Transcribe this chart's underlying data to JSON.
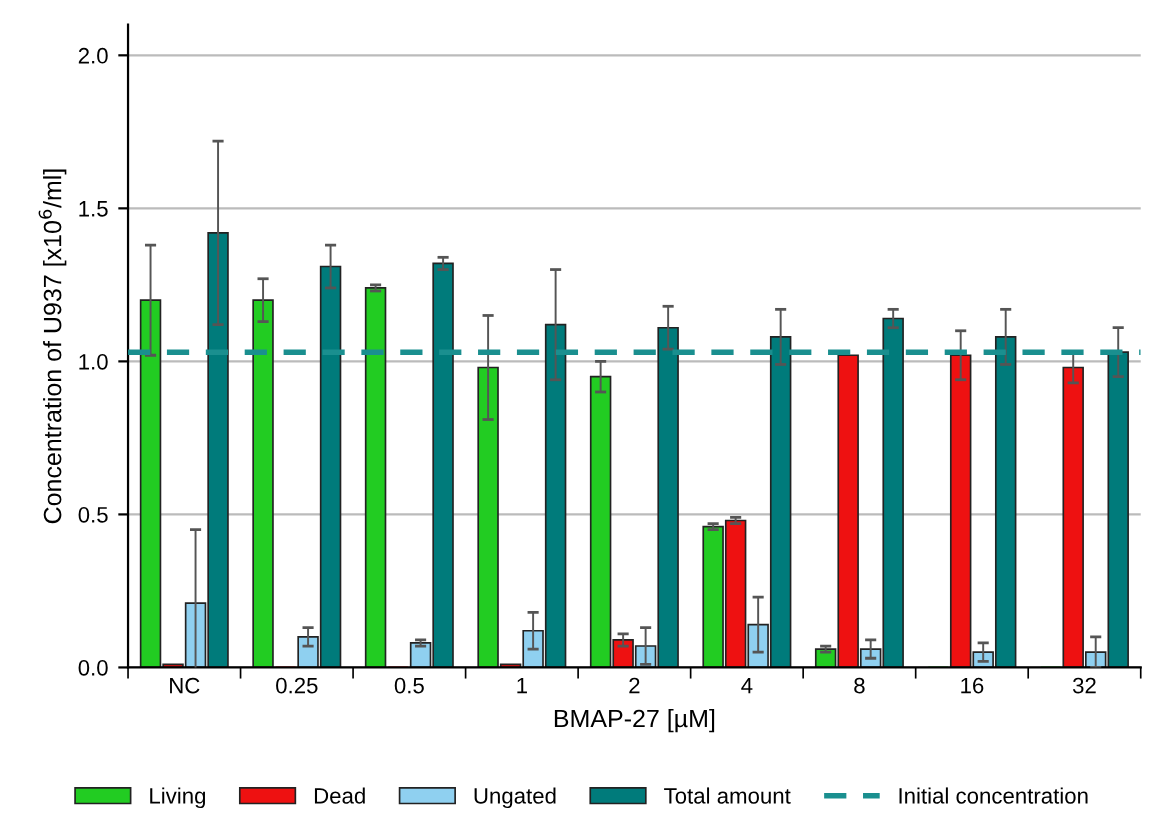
{
  "chart_data": {
    "type": "bar",
    "xlabel": "BMAP-27 [µM]",
    "ylabel": "Concentration of U937 [x10$^{6}$/ml]",
    "categories": [
      "NC",
      "0.25",
      "0.5",
      "1",
      "2",
      "4",
      "8",
      "16",
      "32"
    ],
    "series": [
      {
        "name": "Living",
        "color": "#22cc22",
        "values": [
          1.2,
          1.2,
          1.24,
          0.98,
          0.95,
          0.46,
          0.06,
          0.0,
          0.0
        ],
        "errors": [
          0.18,
          0.07,
          0.01,
          0.17,
          0.05,
          0.01,
          0.01,
          null,
          null
        ]
      },
      {
        "name": "Dead",
        "color": "#ee1111",
        "values": [
          0.01,
          0.0,
          0.0,
          0.01,
          0.09,
          0.48,
          1.02,
          1.02,
          0.98
        ],
        "errors": [
          null,
          null,
          null,
          null,
          0.02,
          0.01,
          null,
          0.08,
          0.05
        ]
      },
      {
        "name": "Ungated",
        "color": "#8fd0f0",
        "values": [
          0.21,
          0.1,
          0.08,
          0.12,
          0.07,
          0.14,
          0.06,
          0.05,
          0.05
        ],
        "errors": [
          0.24,
          0.03,
          0.01,
          0.06,
          0.06,
          0.09,
          0.03,
          0.03,
          0.05
        ]
      },
      {
        "name": "Total amount",
        "color": "#007b7b",
        "values": [
          1.42,
          1.31,
          1.32,
          1.12,
          1.11,
          1.08,
          1.14,
          1.08,
          1.03
        ],
        "errors": [
          0.3,
          0.07,
          0.02,
          0.18,
          0.07,
          0.09,
          0.03,
          0.09,
          0.08
        ]
      }
    ],
    "ref_lines": [
      {
        "axis": "y",
        "value": 1.03,
        "label": "Initial concentration",
        "color": "#1a8f8f",
        "line_style": "dashed"
      }
    ],
    "ylim": [
      0,
      2.1
    ],
    "yticks": [
      {
        "value": 0,
        "label": "0.0"
      },
      0.5,
      {
        "value": 1,
        "label": "1.0"
      },
      1.5,
      {
        "value": 2,
        "label": "2.0"
      }
    ],
    "grid": "y",
    "legend": "bottom"
  }
}
